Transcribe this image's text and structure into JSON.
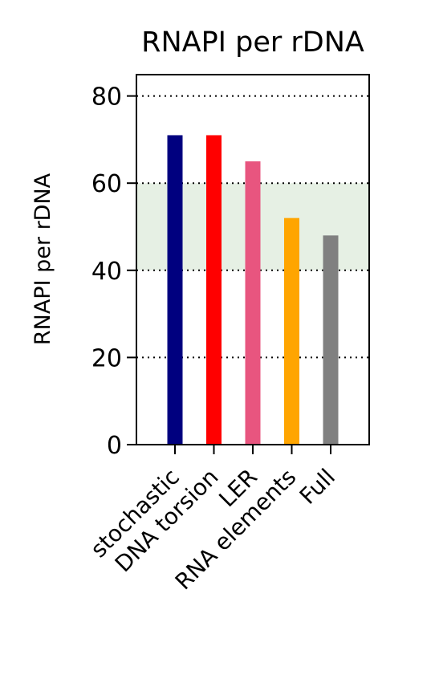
{
  "chart_data": {
    "type": "bar",
    "title": "RNAPI per rDNA",
    "xlabel": "",
    "ylabel": "RNAPI per rDNA",
    "categories": [
      "stochastic",
      "DNA torsion",
      "LER",
      "RNA elements",
      "Full"
    ],
    "values": [
      71,
      71,
      65,
      52,
      48
    ],
    "colors": [
      "#00007f",
      "#ff0000",
      "#e8557f",
      "#ffa500",
      "#808080"
    ],
    "ylim": [
      0,
      85
    ],
    "yticks": [
      0,
      20,
      40,
      60,
      80
    ],
    "grid": "horizontal dotted",
    "shaded_band": {
      "from": 40,
      "to": 60,
      "color": "#e6f0e4"
    }
  }
}
